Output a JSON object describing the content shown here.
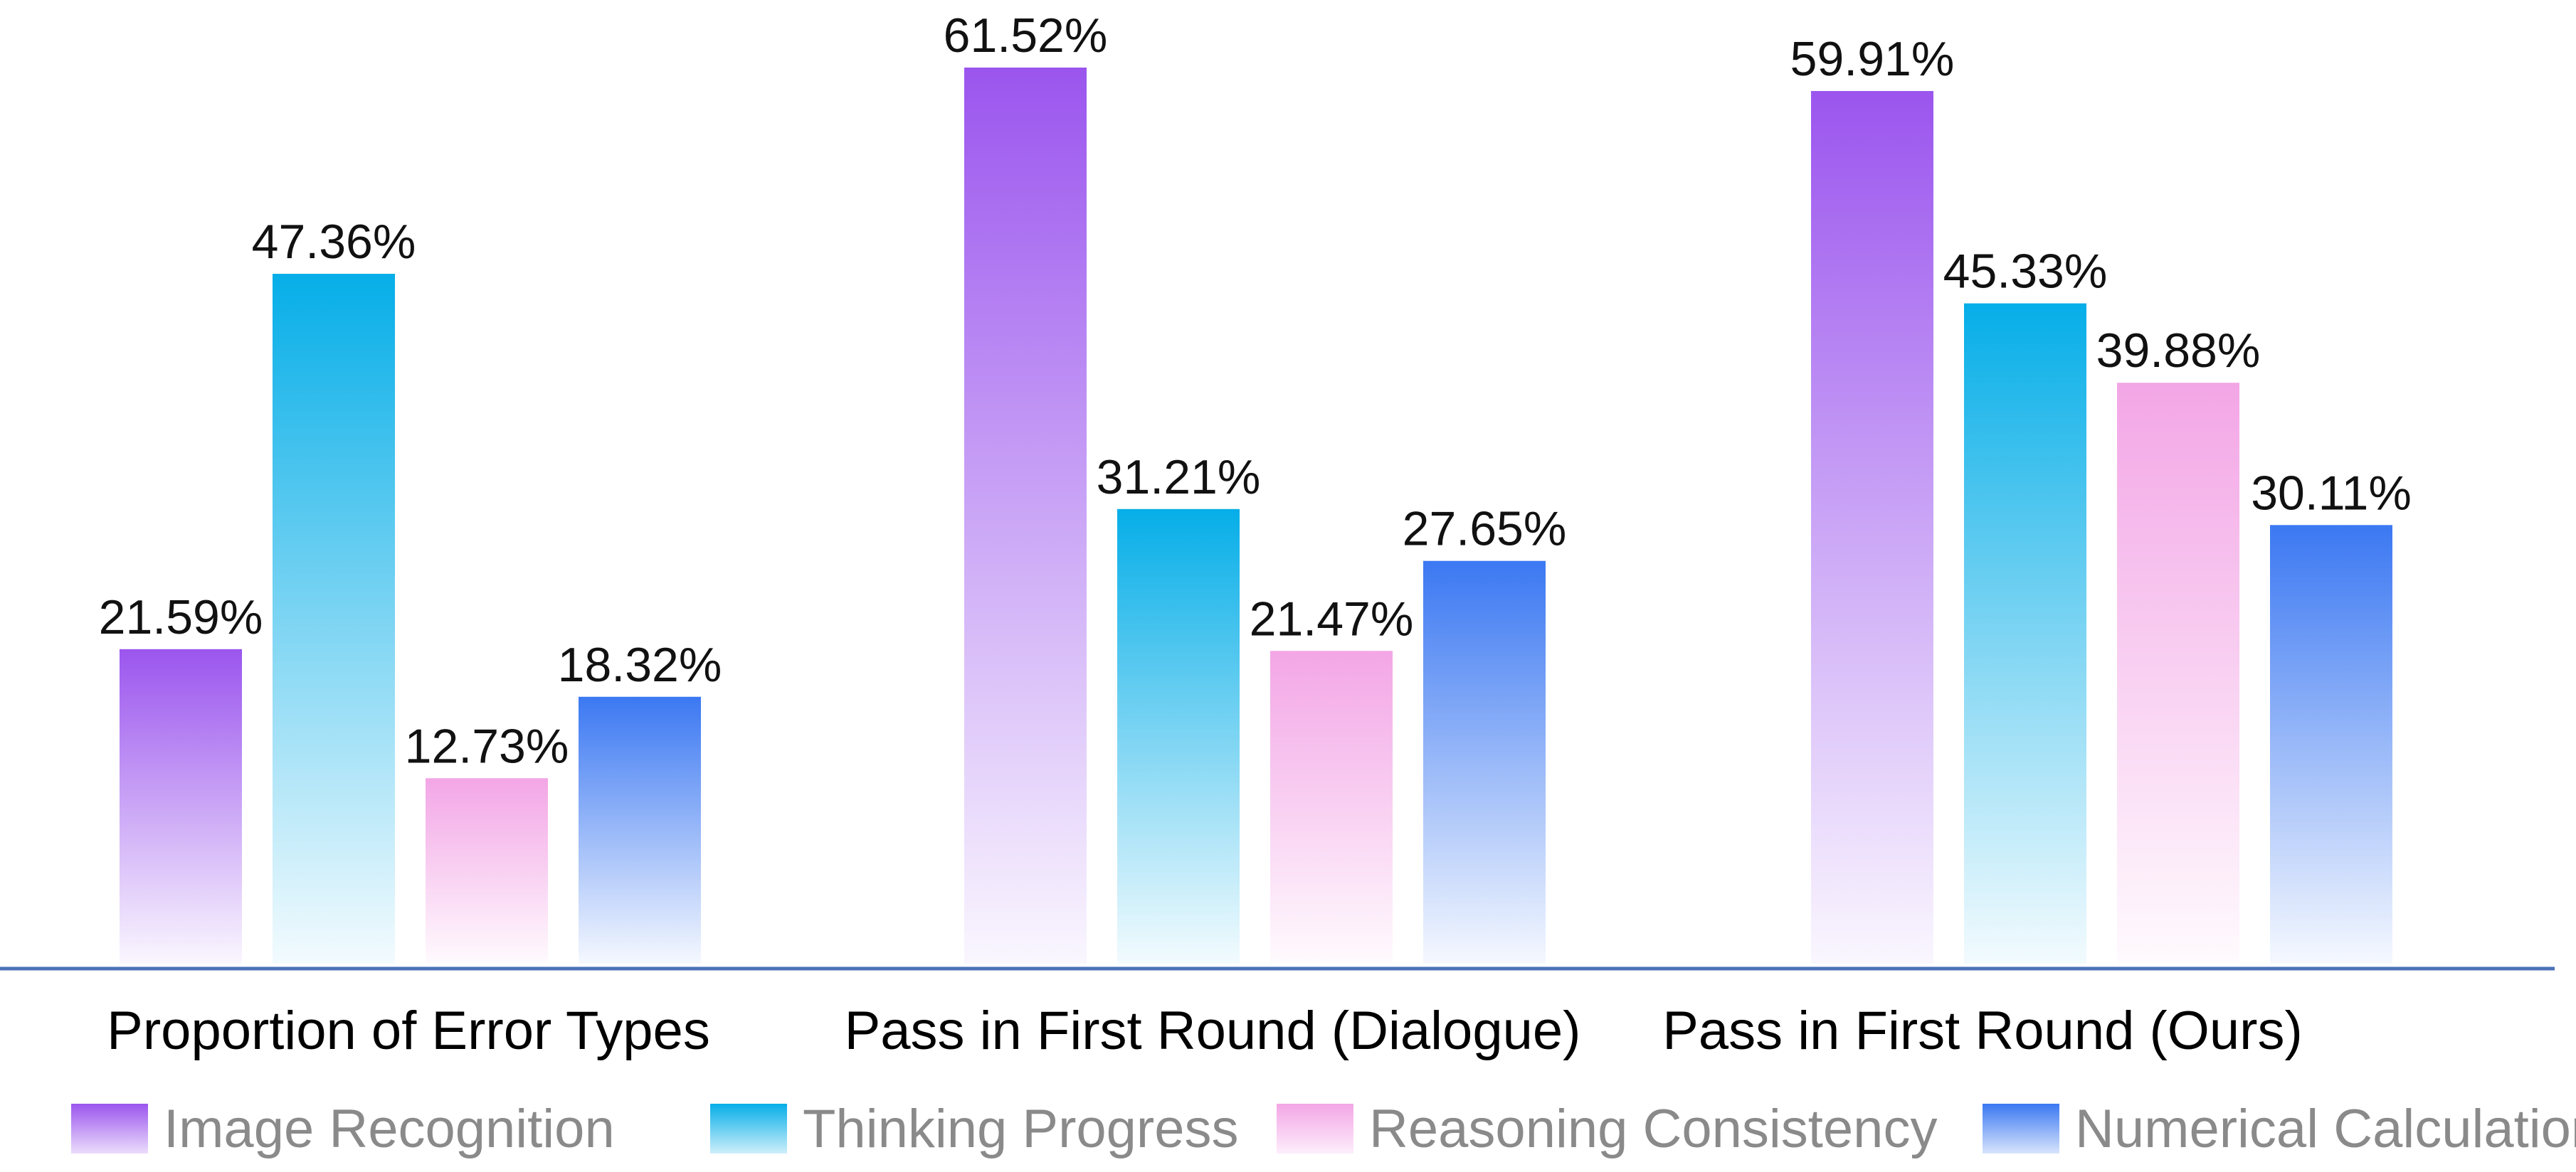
{
  "chart_data": {
    "type": "bar",
    "categories": [
      "Proportion of Error Types",
      "Pass in First Round (Dialogue)",
      "Pass in First Round (Ours)"
    ],
    "series": [
      {
        "name": "Image Recognition",
        "color": "#9b55ee",
        "values": [
          21.59,
          61.52,
          59.91
        ],
        "labels": [
          "21.59%",
          "61.52%",
          "59.91%"
        ]
      },
      {
        "name": "Thinking Progress",
        "color": "#06aee8",
        "values": [
          47.36,
          31.21,
          45.33
        ],
        "labels": [
          "47.36%",
          "31.21%",
          "45.33%"
        ]
      },
      {
        "name": "Reasoning Consistency",
        "color": "#f3a6e6",
        "values": [
          12.73,
          21.47,
          39.88
        ],
        "labels": [
          "12.73%",
          "21.47%",
          "39.88%"
        ]
      },
      {
        "name": "Numerical Calculation",
        "color": "#3b78f2",
        "values": [
          18.32,
          27.65,
          30.11
        ],
        "labels": [
          "18.32%",
          "27.65%",
          "30.11%"
        ]
      }
    ],
    "ylim": [
      0,
      65
    ],
    "grid": false,
    "legend": "bottom",
    "baseline_color": "#4a72b8"
  }
}
